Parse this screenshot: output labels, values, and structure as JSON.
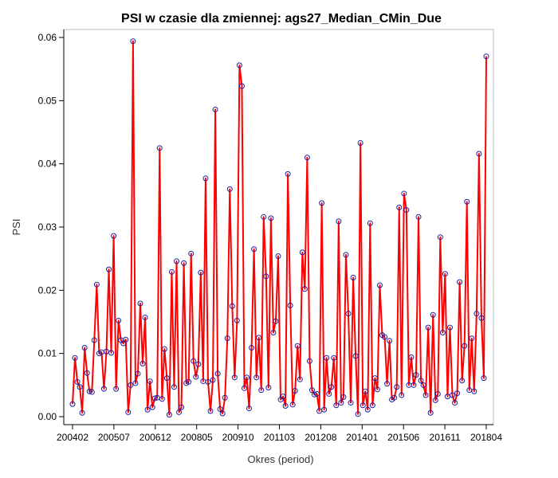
{
  "chart_data": {
    "type": "line",
    "title": "PSI w czasie dla zmiennej: ags27_Median_CMin_Due",
    "xlabel": "Okres (period)",
    "ylabel": "PSI",
    "xlim": [
      200402,
      201806
    ],
    "ylim": [
      0,
      0.06
    ],
    "x_tick_labels": [
      "200402",
      "200507",
      "200612",
      "200805",
      "200910",
      "201103",
      "201208",
      "201401",
      "201506",
      "201611",
      "201804"
    ],
    "y_tick_labels": [
      "0.00",
      "0.01",
      "0.02",
      "0.03",
      "0.04",
      "0.05",
      "0.06"
    ],
    "y_ticks": [
      0,
      0.01,
      0.02,
      0.03,
      0.04,
      0.05,
      0.06
    ],
    "grid": false,
    "colors": {
      "line": "#ff0000",
      "marker": "#1f1f9f"
    },
    "series": [
      {
        "values": [
          0.002,
          0.0093,
          0.0055,
          0.0047,
          0.0006,
          0.0109,
          0.0069,
          0.004,
          0.0039,
          0.0121,
          0.0209,
          0.01,
          0.0102,
          0.0044,
          0.0103,
          0.0233,
          0.0101,
          0.0286,
          0.0044,
          0.0152,
          0.0121,
          0.0116,
          0.0122,
          0.0007,
          0.005,
          0.0594,
          0.0053,
          0.0068,
          0.0179,
          0.0084,
          0.0157,
          0.0011,
          0.0056,
          0.0015,
          0.0029,
          0.003,
          0.0425,
          0.0028,
          0.0107,
          0.0061,
          0.0003,
          0.0229,
          0.0047,
          0.0246,
          0.0007,
          0.0015,
          0.0243,
          0.0053,
          0.0055,
          0.0258,
          0.0088,
          0.0063,
          0.0083,
          0.0228,
          0.0056,
          0.0377,
          0.0055,
          0.0009,
          0.0058,
          0.0486,
          0.0068,
          0.0012,
          0.0005,
          0.003,
          0.0124,
          0.036,
          0.0175,
          0.0062,
          0.0152,
          0.0556,
          0.0523,
          0.0045,
          0.0062,
          0.0013,
          0.0109,
          0.0265,
          0.0062,
          0.0125,
          0.0042,
          0.0316,
          0.0222,
          0.0046,
          0.0314,
          0.0133,
          0.0151,
          0.0254,
          0.0027,
          0.0032,
          0.0017,
          0.0384,
          0.0176,
          0.0019,
          0.0041,
          0.0112,
          0.0059,
          0.026,
          0.0202,
          0.041,
          0.0088,
          0.0042,
          0.0035,
          0.0036,
          0.0009,
          0.0338,
          0.0011,
          0.0093,
          0.0036,
          0.0047,
          0.0093,
          0.0018,
          0.0309,
          0.0022,
          0.0031,
          0.0256,
          0.0163,
          0.0022,
          0.022,
          0.0096,
          0.0004,
          0.0433,
          0.0018,
          0.004,
          0.0011,
          0.0306,
          0.0018,
          0.0061,
          0.0043,
          0.0208,
          0.0129,
          0.0126,
          0.0052,
          0.012,
          0.0027,
          0.003,
          0.0047,
          0.0331,
          0.0034,
          0.0353,
          0.0327,
          0.005,
          0.0094,
          0.005,
          0.0066,
          0.0316,
          0.0057,
          0.005,
          0.0034,
          0.0141,
          0.0006,
          0.0161,
          0.0026,
          0.0036,
          0.0284,
          0.0133,
          0.0226,
          0.0032,
          0.0141,
          0.0034,
          0.0022,
          0.0037,
          0.0213,
          0.0057,
          0.0112,
          0.034,
          0.0042,
          0.0124,
          0.004,
          0.0163,
          0.0416,
          0.0156,
          0.0061,
          0.057
        ]
      }
    ]
  }
}
